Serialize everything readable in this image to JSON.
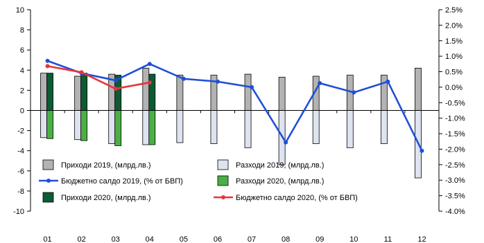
{
  "chart_data": {
    "type": "bar",
    "categories": [
      "01",
      "02",
      "03",
      "04",
      "05",
      "06",
      "07",
      "08",
      "09",
      "10",
      "11",
      "12"
    ],
    "ylim_left": [
      -10,
      10
    ],
    "yticks_left": [
      "10",
      "8",
      "6",
      "4",
      "2",
      "0",
      "-2",
      "-4",
      "-6",
      "-8",
      "-10"
    ],
    "ylim_right": [
      -4.0,
      2.5
    ],
    "yticks_right": [
      "2.5%",
      "2.0%",
      "1.5%",
      "1.0%",
      "0.5%",
      "0.0%",
      "-0.5%",
      "-1.0%",
      "-1.5%",
      "-2.0%",
      "-2.5%",
      "-3.0%",
      "-3.5%",
      "-4.0%"
    ],
    "grid": false,
    "series": [
      {
        "name": "Приходи 2019, (млрд.лв.)",
        "type": "bar",
        "axis": "left",
        "color": "#b3b3b3",
        "values": [
          3.7,
          3.4,
          3.6,
          4.2,
          3.5,
          3.5,
          3.6,
          3.3,
          3.4,
          3.5,
          3.5,
          4.2
        ]
      },
      {
        "name": "Приходи 2020, (млрд.лв.)",
        "type": "bar",
        "axis": "left",
        "color": "#0b5c34",
        "values": [
          3.7,
          3.7,
          3.5,
          3.6,
          null,
          null,
          null,
          null,
          null,
          null,
          null,
          null
        ]
      },
      {
        "name": "Разходи 2019, (млрд.лв.)",
        "type": "bar",
        "axis": "left",
        "color": "#dde3ef",
        "values": [
          -2.7,
          -2.9,
          -3.3,
          -3.4,
          -3.2,
          -3.3,
          -3.7,
          -5.4,
          -3.3,
          -3.7,
          -3.3,
          -6.7
        ]
      },
      {
        "name": "Разходи 2020, (млрд.лв.)",
        "type": "bar",
        "axis": "left",
        "color": "#4caf45",
        "values": [
          -2.8,
          -3.0,
          -3.5,
          -3.4,
          null,
          null,
          null,
          null,
          null,
          null,
          null,
          null
        ]
      },
      {
        "name": "Бюджетно салдо 2019, (% от БВП)",
        "type": "line",
        "axis": "right",
        "color": "#1f4fd8",
        "values": [
          0.85,
          0.45,
          0.22,
          0.75,
          0.27,
          0.18,
          0.0,
          -1.78,
          0.13,
          -0.17,
          0.18,
          -2.05
        ]
      },
      {
        "name": "Бюджетно салдо 2020, (% от БВП)",
        "type": "line",
        "axis": "right",
        "color": "#e8333a",
        "values": [
          0.68,
          0.48,
          -0.05,
          0.15,
          null,
          null,
          null,
          null,
          null,
          null,
          null,
          null
        ]
      }
    ],
    "legend_position": "bottom-left",
    "legend_order": [
      [
        "Приходи 2019, (млрд.лв.)",
        "Разходи 2019, (млрд.лв.)"
      ],
      [
        "Бюджетно салдо 2019, (% от БВП)",
        "Разходи 2020, (млрд.лв.)"
      ],
      [
        "Приходи 2020, (млрд.лв.)",
        "Бюджетно салдо 2020, (% от БВП)"
      ]
    ]
  }
}
